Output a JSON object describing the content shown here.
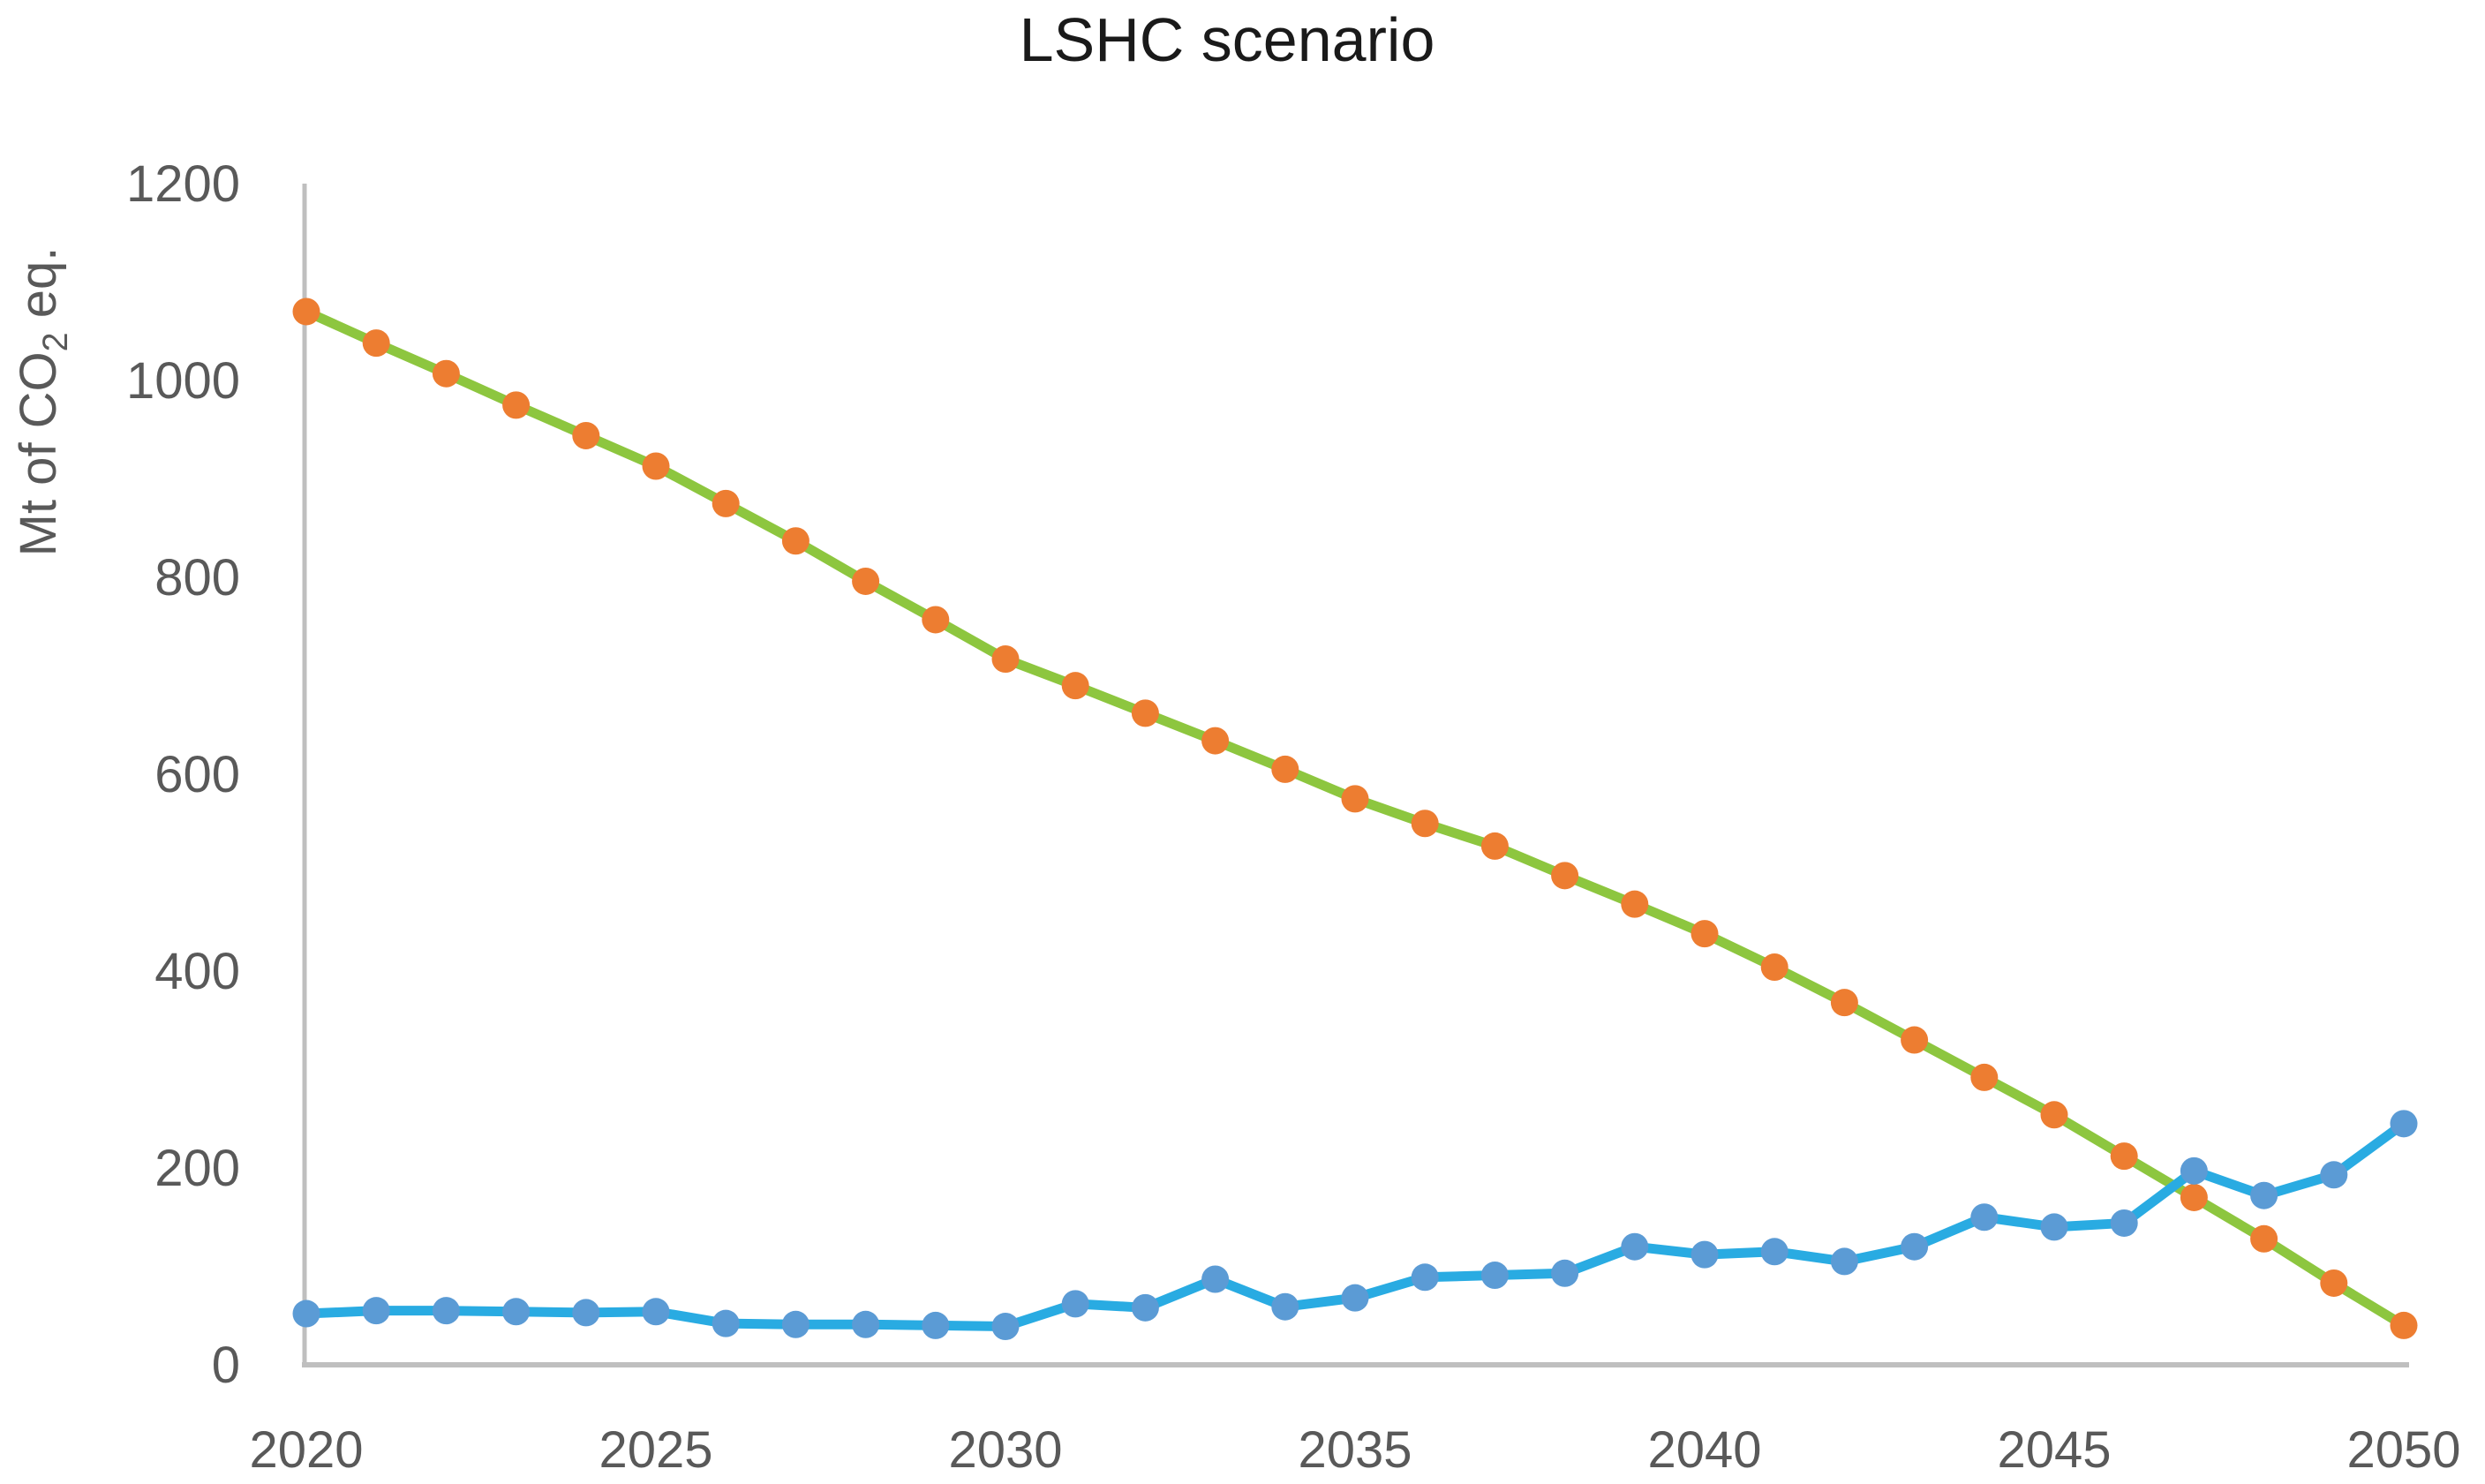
{
  "chart_data": {
    "type": "line",
    "title": "LSHC scenario",
    "ylabel_pre": "Mt of CO",
    "ylabel_sub": "2",
    "ylabel_post": " eq.",
    "xlabel": "",
    "x": [
      2020,
      2021,
      2022,
      2023,
      2024,
      2025,
      2026,
      2027,
      2028,
      2029,
      2030,
      2031,
      2032,
      2033,
      2034,
      2035,
      2036,
      2037,
      2038,
      2039,
      2040,
      2041,
      2042,
      2043,
      2044,
      2045,
      2046,
      2047,
      2048,
      2049,
      2050
    ],
    "x_ticks": [
      2020,
      2025,
      2030,
      2035,
      2040,
      2045,
      2050
    ],
    "y_ticks": [
      0,
      200,
      400,
      600,
      800,
      1000,
      1200
    ],
    "ylim": [
      0,
      1200
    ],
    "xlim": [
      2020,
      2050
    ],
    "grid": false,
    "legend_position": "none",
    "series": [
      {
        "id": "declining-series",
        "line_color": "#8DC63F",
        "marker_color": "#ED7D31",
        "values": [
          1070,
          1038,
          1007,
          975,
          944,
          913,
          875,
          837,
          796,
          757,
          717,
          690,
          662,
          634,
          605,
          575,
          550,
          527,
          497,
          468,
          438,
          404,
          368,
          330,
          292,
          254,
          212,
          170,
          128,
          83,
          40
        ]
      },
      {
        "id": "rising-series",
        "line_color": "#29ABE2",
        "marker_color": "#5B9BD5",
        "values": [
          52,
          55,
          55,
          54,
          53,
          54,
          42,
          41,
          41,
          40,
          39,
          62,
          58,
          87,
          59,
          68,
          89,
          91,
          93,
          120,
          112,
          115,
          105,
          120,
          150,
          140,
          144,
          197,
          172,
          193,
          245
        ]
      }
    ]
  },
  "colors": {
    "axis_line": "#BFBFBF",
    "tick_text": "#595959",
    "title_text": "#1a1a1a",
    "background": "#ffffff"
  }
}
